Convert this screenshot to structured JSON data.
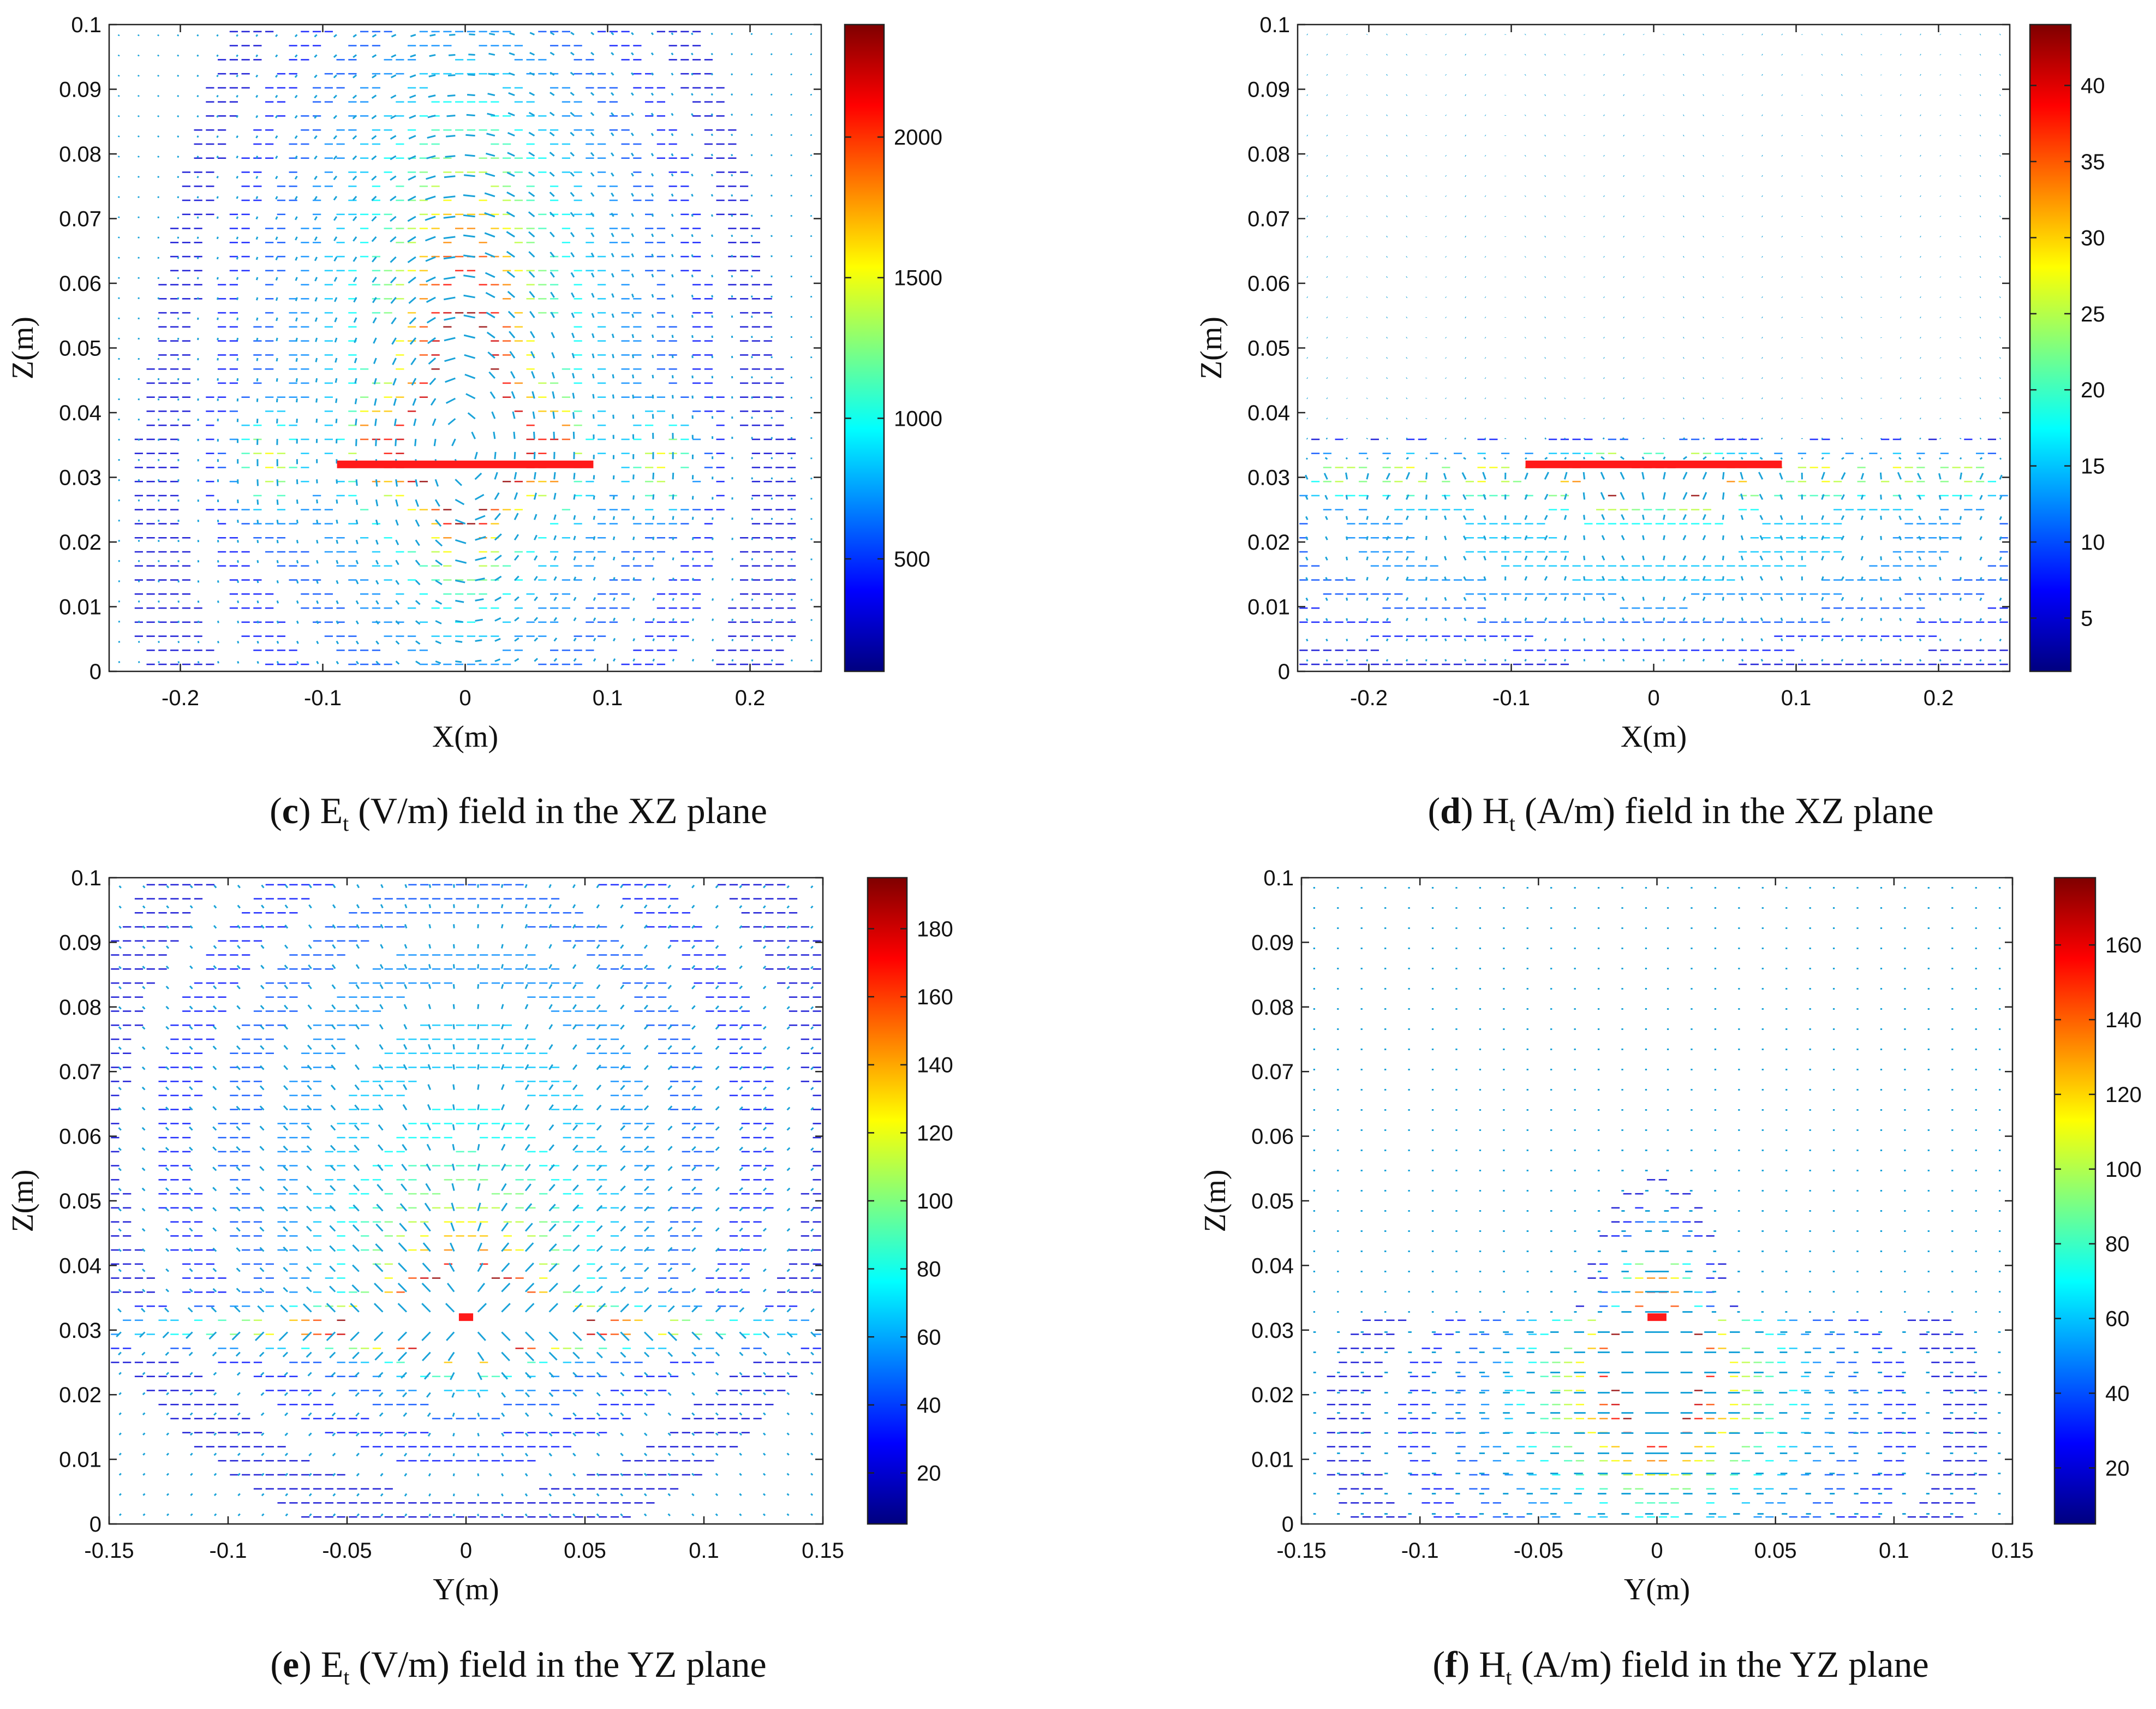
{
  "colormap": [
    "#00007f",
    "#0000ff",
    "#007fff",
    "#00ffff",
    "#7fff7f",
    "#ffff00",
    "#ff7f00",
    "#ff0000",
    "#7f0000"
  ],
  "colors": {
    "contour_low": "#2b2bd6",
    "arrow": "#1aa3d9",
    "source": "#ff1a1a"
  },
  "chart_data": [
    {
      "id": "c",
      "type": "contour",
      "title": "Et (V/m) field in the XZ plane",
      "caption": {
        "letter": "c",
        "quantity": "E",
        "subscript": "t",
        "rest": "(V/m) field in the XZ plane"
      },
      "xlabel": "X(m)",
      "ylabel": "Z(m)",
      "xlim": [
        -0.25,
        0.25
      ],
      "ylim": [
        0,
        0.1
      ],
      "xticks": [
        -0.2,
        -0.1,
        0,
        0.1,
        0.2
      ],
      "xtick_labels": [
        "-0.2",
        "-0.1",
        "0",
        "0.1",
        "0.2"
      ],
      "yticks": [
        0,
        0.01,
        0.02,
        0.03,
        0.04,
        0.05,
        0.06,
        0.07,
        0.08,
        0.09,
        0.1
      ],
      "ytick_labels": [
        "0",
        "0.01",
        "0.02",
        "0.03",
        "0.04",
        "0.05",
        "0.06",
        "0.07",
        "0.08",
        "0.09",
        "0.1"
      ],
      "colorbar": {
        "min": 100,
        "max": 2400,
        "ticks": [
          500,
          1000,
          1500,
          2000
        ],
        "labels": [
          "500",
          "1000",
          "1500",
          "2000"
        ]
      },
      "source": {
        "x": [
          -0.09,
          0.09
        ],
        "z": 0.032
      },
      "field": "E-xz"
    },
    {
      "id": "d",
      "type": "contour",
      "title": "Ht (A/m) field in the XZ plane",
      "caption": {
        "letter": "d",
        "quantity": "H",
        "subscript": "t",
        "rest": "(A/m) field in the XZ plane"
      },
      "xlabel": "X(m)",
      "ylabel": "Z(m)",
      "xlim": [
        -0.25,
        0.25
      ],
      "ylim": [
        0,
        0.1
      ],
      "xticks": [
        -0.2,
        -0.1,
        0,
        0.1,
        0.2
      ],
      "xtick_labels": [
        "-0.2",
        "-0.1",
        "0",
        "0.1",
        "0.2"
      ],
      "yticks": [
        0,
        0.01,
        0.02,
        0.03,
        0.04,
        0.05,
        0.06,
        0.07,
        0.08,
        0.09,
        0.1
      ],
      "ytick_labels": [
        "0",
        "0.01",
        "0.02",
        "0.03",
        "0.04",
        "0.05",
        "0.06",
        "0.07",
        "0.08",
        "0.09",
        "0.1"
      ],
      "colorbar": {
        "min": 1.5,
        "max": 44,
        "ticks": [
          5,
          10,
          15,
          20,
          25,
          30,
          35,
          40
        ],
        "labels": [
          "5",
          "10",
          "15",
          "20",
          "25",
          "30",
          "35",
          "40"
        ]
      },
      "source": {
        "x": [
          -0.09,
          0.09
        ],
        "z": 0.032
      },
      "field": "H-xz"
    },
    {
      "id": "e",
      "type": "contour",
      "title": "Et (V/m) field in the YZ plane",
      "caption": {
        "letter": "e",
        "quantity": "E",
        "subscript": "t",
        "rest": "(V/m) field in the YZ plane"
      },
      "xlabel": "Y(m)",
      "ylabel": "Z(m)",
      "xlim": [
        -0.15,
        0.15
      ],
      "ylim": [
        0,
        0.1
      ],
      "xticks": [
        -0.15,
        -0.1,
        -0.05,
        0,
        0.05,
        0.1,
        0.15
      ],
      "xtick_labels": [
        "-0.15",
        "-0.1",
        "-0.05",
        "0",
        "0.05",
        "0.1",
        "0.15"
      ],
      "yticks": [
        0,
        0.01,
        0.02,
        0.03,
        0.04,
        0.05,
        0.06,
        0.07,
        0.08,
        0.09,
        0.1
      ],
      "ytick_labels": [
        "0",
        "0.01",
        "0.02",
        "0.03",
        "0.04",
        "0.05",
        "0.06",
        "0.07",
        "0.08",
        "0.09",
        "0.1"
      ],
      "colorbar": {
        "min": 5,
        "max": 195,
        "ticks": [
          20,
          40,
          60,
          80,
          100,
          120,
          140,
          160,
          180
        ],
        "labels": [
          "20",
          "40",
          "60",
          "80",
          "100",
          "120",
          "140",
          "160",
          "180"
        ]
      },
      "source": {
        "x": [
          -0.003,
          0.003
        ],
        "z": 0.032
      },
      "field": "E-yz"
    },
    {
      "id": "f",
      "type": "contour",
      "title": "Ht (A/m) field in the YZ plane",
      "caption": {
        "letter": "f",
        "quantity": "H",
        "subscript": "t",
        "rest": "(A/m) field in the YZ plane"
      },
      "xlabel": "Y(m)",
      "ylabel": "Z(m)",
      "xlim": [
        -0.15,
        0.15
      ],
      "ylim": [
        0,
        0.1
      ],
      "xticks": [
        -0.15,
        -0.1,
        -0.05,
        0,
        0.05,
        0.1,
        0.15
      ],
      "xtick_labels": [
        "-0.15",
        "-0.1",
        "-0.05",
        "0",
        "0.05",
        "0.1",
        "0.15"
      ],
      "yticks": [
        0,
        0.01,
        0.02,
        0.03,
        0.04,
        0.05,
        0.06,
        0.07,
        0.08,
        0.09,
        0.1
      ],
      "ytick_labels": [
        "0",
        "0.01",
        "0.02",
        "0.03",
        "0.04",
        "0.05",
        "0.06",
        "0.07",
        "0.08",
        "0.09",
        "0.1"
      ],
      "colorbar": {
        "min": 5,
        "max": 178,
        "ticks": [
          20,
          40,
          60,
          80,
          100,
          120,
          140,
          160
        ],
        "labels": [
          "20",
          "40",
          "60",
          "80",
          "100",
          "120",
          "140",
          "160"
        ]
      },
      "source": {
        "x": [
          -0.004,
          0.004
        ],
        "z": 0.032
      },
      "field": "H-yz"
    }
  ]
}
